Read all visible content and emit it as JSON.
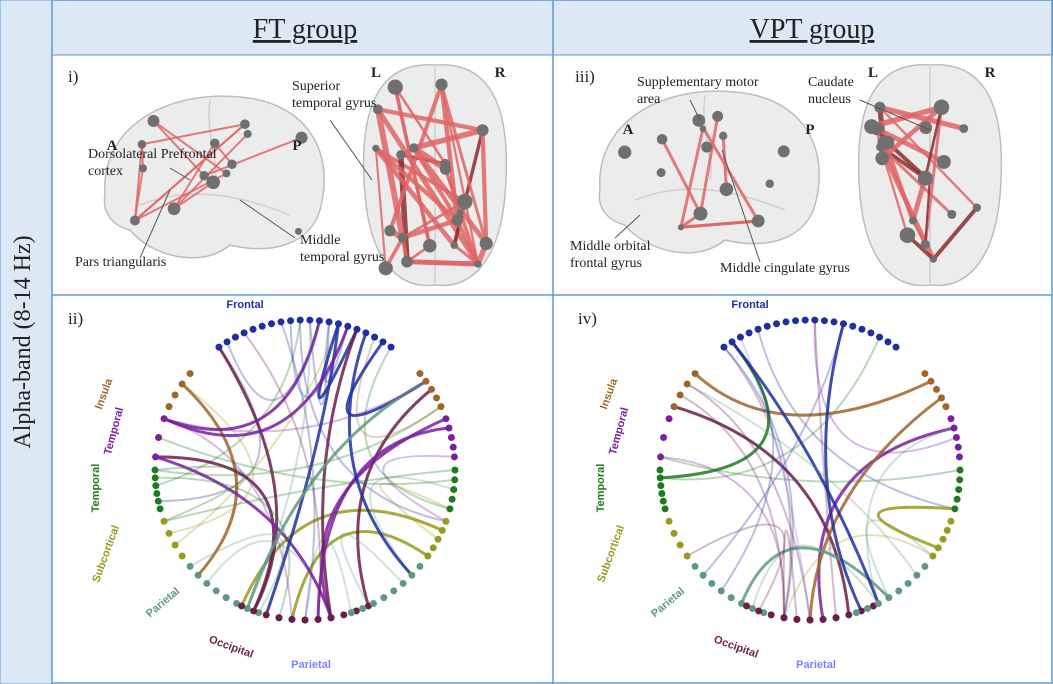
{
  "side_label": "Alpha-band (8-14 Hz)",
  "columns": [
    {
      "title": "FT group"
    },
    {
      "title": "VPT group"
    }
  ],
  "panels": [
    {
      "label": "i)",
      "annotations": [
        {
          "lines": [
            "Dorsolateral Prefrontal",
            "cortex"
          ]
        },
        {
          "lines": [
            "Superior",
            "temporal gyrus"
          ]
        },
        {
          "lines": [
            "Pars triangularis"
          ]
        },
        {
          "lines": [
            "Middle",
            "temporal gyrus"
          ]
        }
      ],
      "orientation": [
        "A",
        "P",
        "L",
        "R"
      ]
    },
    {
      "label": "ii)",
      "groups": [
        "Frontal",
        "Insula",
        "Temporal",
        "Temporal",
        "Subcortical",
        "Parietal",
        "Occipital",
        "Parietal"
      ]
    },
    {
      "label": "iii)",
      "annotations": [
        {
          "lines": [
            "Supplementary motor",
            "area"
          ]
        },
        {
          "lines": [
            "Caudate",
            "nucleus"
          ]
        },
        {
          "lines": [
            "Middle orbital",
            "frontal gyrus"
          ]
        },
        {
          "lines": [
            "Middle cingulate gyrus"
          ]
        }
      ],
      "orientation": [
        "A",
        "P",
        "L",
        "R"
      ]
    },
    {
      "label": "iv)",
      "groups": [
        "Frontal",
        "Insula",
        "Temporal",
        "Temporal",
        "Subcortical",
        "Parietal",
        "Occipital",
        "Parietal"
      ]
    }
  ]
}
